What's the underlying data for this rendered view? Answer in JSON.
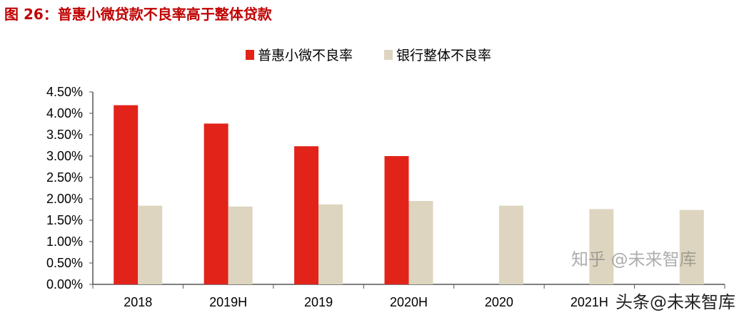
{
  "title": "图 26：普惠小微贷款不良率高于整体贷款",
  "watermarks": [
    "知乎 @未来智库",
    "头条@未来智库"
  ],
  "chart_data": {
    "type": "bar",
    "categories": [
      "2018",
      "2019H",
      "2019",
      "2020H",
      "2020",
      "2021H",
      ""
    ],
    "series": [
      {
        "name": "普惠小微不良率",
        "color": "#e2231a",
        "values": [
          4.19,
          3.76,
          3.23,
          3.0,
          null,
          null,
          null
        ]
      },
      {
        "name": "银行整体不良率",
        "color": "#ddd5bf",
        "values": [
          1.84,
          1.82,
          1.87,
          1.95,
          1.84,
          1.76,
          1.74
        ]
      }
    ],
    "yticks": [
      "0.00%",
      "0.50%",
      "1.00%",
      "1.50%",
      "2.00%",
      "2.50%",
      "3.00%",
      "3.50%",
      "4.00%",
      "4.50%"
    ],
    "ylim": [
      0,
      4.5
    ],
    "legend": "top-center",
    "grid": false
  }
}
